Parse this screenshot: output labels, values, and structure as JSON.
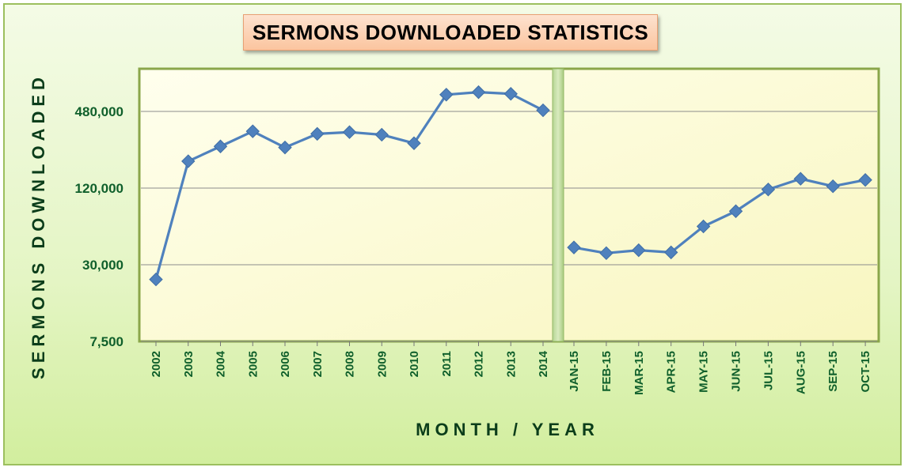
{
  "colors": {
    "series": "#4f81bd",
    "tick_text": "#0f5f2b",
    "axis_title": "#0b3d1a",
    "plot_fill": "#fdfcd0",
    "title_box": "#fbc59f",
    "background": "#e4f5c4"
  },
  "chart_data": {
    "type": "line",
    "title": "SERMONS DOWNLOADED STATISTICS",
    "xlabel": "MONTH / YEAR",
    "ylabel": "SERMONS DOWNLOADED",
    "yscale": "log",
    "yticks": [
      7500,
      30000,
      120000,
      480000
    ],
    "ytick_labels": [
      "7,500",
      "30,000",
      "120,000",
      "480,000"
    ],
    "ylim": [
      7500,
      1000000
    ],
    "grid": true,
    "legend": "none",
    "panels": [
      {
        "categories": [
          "2002",
          "2003",
          "2004",
          "2005",
          "2006",
          "2007",
          "2008",
          "2009",
          "2010",
          "2011",
          "2012",
          "2013",
          "2014"
        ],
        "values": [
          23000,
          195000,
          255000,
          335000,
          250000,
          320000,
          330000,
          315000,
          270000,
          650000,
          680000,
          660000,
          490000
        ]
      },
      {
        "categories": [
          "JAN-15",
          "FEB-15",
          "MAR-15",
          "APR-15",
          "MAY-15",
          "JUN-15",
          "JUL-15",
          "AUG-15",
          "SEP-15",
          "OCT-15"
        ],
        "values": [
          41000,
          37000,
          39000,
          37500,
          60000,
          79000,
          117000,
          142000,
          124000,
          139000
        ]
      }
    ]
  }
}
